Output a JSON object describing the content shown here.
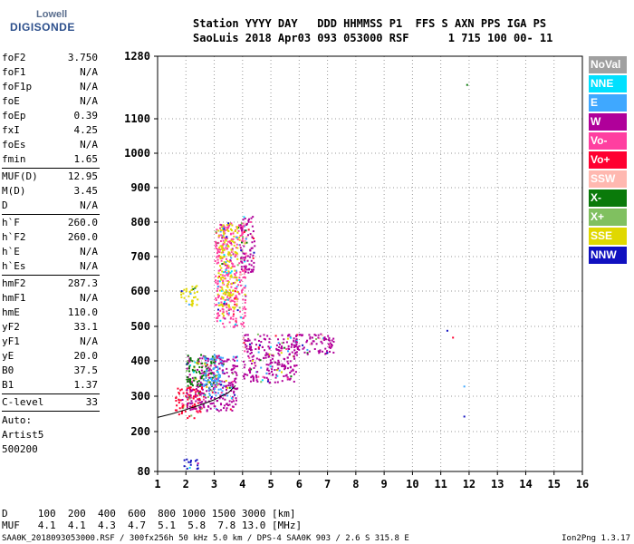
{
  "logo": {
    "top": "Lowell",
    "main": "DIGISONDE"
  },
  "header": {
    "line1": "Station YYYY DAY   DDD HHMMSS P1  FFS S AXN PPS IGA PS",
    "line2": "SaoLuis 2018 Apr03 093 053000 RSF      1 715 100 00- 11"
  },
  "params": {
    "group1": [
      {
        "name": "foF2",
        "value": "3.750"
      },
      {
        "name": "foF1",
        "value": "N/A"
      },
      {
        "name": "foF1p",
        "value": "N/A"
      },
      {
        "name": "foE",
        "value": "N/A"
      },
      {
        "name": "foEp",
        "value": "0.39"
      },
      {
        "name": "fxI",
        "value": "4.25"
      },
      {
        "name": "foEs",
        "value": "N/A"
      },
      {
        "name": "fmin",
        "value": "1.65"
      }
    ],
    "group2": [
      {
        "name": "MUF(D)",
        "value": "12.95"
      },
      {
        "name": "M(D)",
        "value": "3.45"
      },
      {
        "name": "D",
        "value": "N/A"
      }
    ],
    "group3": [
      {
        "name": "h`F",
        "value": "260.0"
      },
      {
        "name": "h`F2",
        "value": "260.0"
      },
      {
        "name": "h`E",
        "value": "N/A"
      },
      {
        "name": "h`Es",
        "value": "N/A"
      }
    ],
    "group4": [
      {
        "name": "hmF2",
        "value": "287.3"
      },
      {
        "name": "hmF1",
        "value": "N/A"
      },
      {
        "name": "hmE",
        "value": "110.0"
      },
      {
        "name": "yF2",
        "value": "33.1"
      },
      {
        "name": "yF1",
        "value": "N/A"
      },
      {
        "name": "yE",
        "value": "20.0"
      },
      {
        "name": "B0",
        "value": "37.5"
      },
      {
        "name": "B1",
        "value": "1.37"
      }
    ],
    "group5": [
      {
        "name": "C-level",
        "value": "33"
      }
    ],
    "auto": [
      "Auto:",
      "Artist5",
      "500200"
    ]
  },
  "mufTable": {
    "dRow": "D     100  200  400  600  800 1000 1500 3000 [km]",
    "mufRow": "MUF   4.1  4.1  4.3  4.7  5.1  5.8  7.8 13.0 [MHz]"
  },
  "footer": {
    "left": "SAA0K_2018093053000.RSF / 300fx256h 50 kHz 5.0 km / DPS-4 SAA0K 903 / 2.6 S 315.8 E",
    "right": "Ion2Png 1.3.17"
  },
  "legend": [
    {
      "label": "NoVal",
      "bg": "#a0a0a0",
      "fg": "#ffffff"
    },
    {
      "label": "NNE",
      "bg": "#00e0ff",
      "fg": "#ffffff"
    },
    {
      "label": "E",
      "bg": "#3fa8ff",
      "fg": "#ffffff"
    },
    {
      "label": "W",
      "bg": "#b0009a",
      "fg": "#ffffff"
    },
    {
      "label": "Vo-",
      "bg": "#ff3fa0",
      "fg": "#ffffff"
    },
    {
      "label": "Vo+",
      "bg": "#ff0030",
      "fg": "#ffffff"
    },
    {
      "label": "SSW",
      "bg": "#ffb8b0",
      "fg": "#ffffff"
    },
    {
      "label": "X-",
      "bg": "#0a7a0a",
      "fg": "#ffffff"
    },
    {
      "label": "X+",
      "bg": "#80c060",
      "fg": "#ffffff"
    },
    {
      "label": "SSE",
      "bg": "#e0d800",
      "fg": "#ffffff"
    },
    {
      "label": "NNW",
      "bg": "#1010c0",
      "fg": "#ffffff"
    }
  ],
  "chart_data": {
    "type": "scatter",
    "xlabel": "",
    "ylabel": "",
    "xlim": [
      1,
      16
    ],
    "ylim": [
      80,
      1280
    ],
    "xticks": [
      "1",
      "2",
      "3",
      "4",
      "5",
      "6",
      "7",
      "8",
      "9",
      "10",
      "11",
      "12",
      "13",
      "14",
      "15",
      "16"
    ],
    "yticks": [
      "80",
      "200",
      "300",
      "400",
      "500",
      "600",
      "700",
      "800",
      "900",
      "1000",
      "1100",
      "1280"
    ],
    "grid": true,
    "legend_position": "right",
    "series_name": "",
    "trace_F2": {
      "x": [
        1.0,
        1.5,
        2.0,
        2.5,
        3.0,
        3.5,
        3.75
      ],
      "y": [
        240,
        250,
        262,
        275,
        290,
        310,
        330
      ]
    },
    "clusters": [
      {
        "x_range": [
          1.6,
          2.6
        ],
        "y_range": [
          240,
          330
        ],
        "color": "#ff0030"
      },
      {
        "x_range": [
          2.0,
          3.8
        ],
        "y_range": [
          260,
          420
        ],
        "color": "#b0009a"
      },
      {
        "x_range": [
          4.0,
          5.9
        ],
        "y_range": [
          340,
          480
        ],
        "color": "#b0009a"
      },
      {
        "x_range": [
          5.8,
          7.2
        ],
        "y_range": [
          420,
          480
        ],
        "color": "#b0009a"
      },
      {
        "x_range": [
          3.0,
          4.1
        ],
        "y_range": [
          500,
          800
        ],
        "color": "#ff3fa0"
      },
      {
        "x_range": [
          3.1,
          3.8
        ],
        "y_range": [
          550,
          800
        ],
        "color": "#e0d800"
      },
      {
        "x_range": [
          1.8,
          2.4
        ],
        "y_range": [
          560,
          620
        ],
        "color": "#e0d800"
      },
      {
        "x_range": [
          1.9,
          2.4
        ],
        "y_range": [
          90,
          120
        ],
        "color": "#1010c0"
      },
      {
        "x_range": [
          2.0,
          3.0
        ],
        "y_range": [
          330,
          420
        ],
        "color": "#0a7a0a"
      },
      {
        "x_range": [
          3.9,
          4.4
        ],
        "y_range": [
          650,
          820
        ],
        "color": "#b0009a"
      },
      {
        "x_range": [
          2.6,
          3.3
        ],
        "y_range": [
          300,
          420
        ],
        "color": "#3fa8ff"
      }
    ],
    "markers": [
      {
        "x": 11.2,
        "y": 490,
        "color": "#1010c0"
      },
      {
        "x": 11.8,
        "y": 245,
        "color": "#1010c0"
      },
      {
        "x": 11.9,
        "y": 1200,
        "color": "#0a7a0a"
      },
      {
        "x": 11.4,
        "y": 470,
        "color": "#ff0030"
      },
      {
        "x": 11.8,
        "y": 330,
        "color": "#3fa8ff"
      }
    ]
  }
}
